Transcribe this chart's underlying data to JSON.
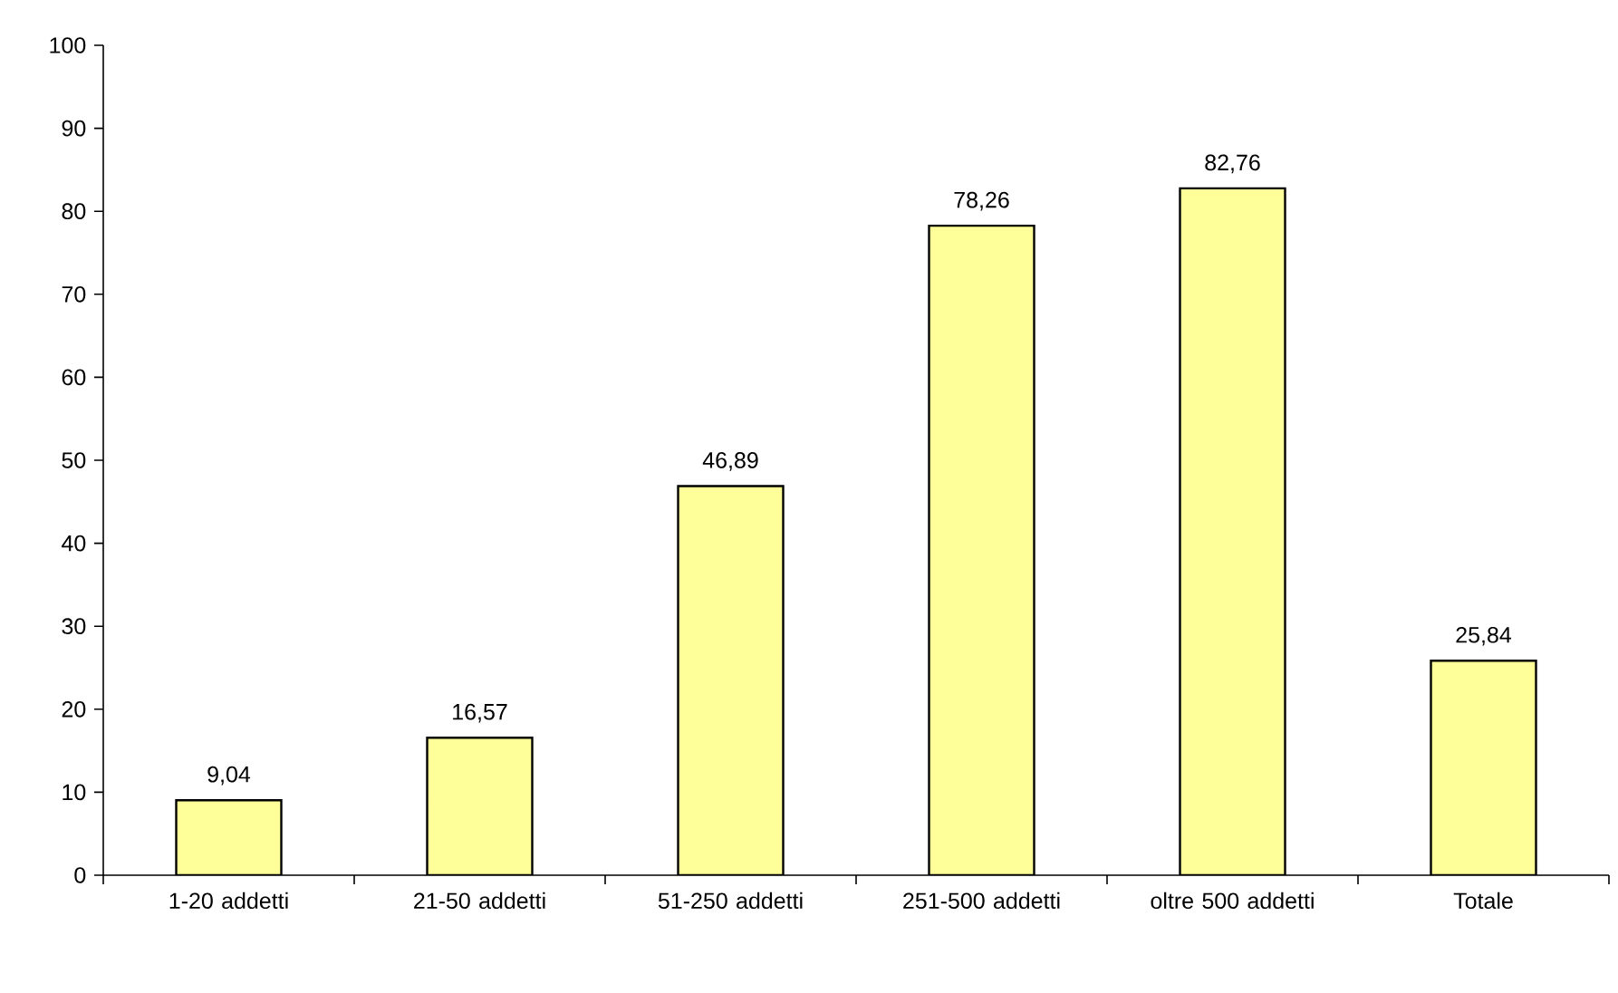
{
  "chart_data": {
    "type": "bar",
    "categories": [
      "1-20 addetti",
      "21-50 addetti",
      "51-250 addetti",
      "251-500 addetti",
      "oltre 500 addetti",
      "Totale"
    ],
    "values": [
      9.04,
      16.57,
      46.89,
      78.26,
      82.76,
      25.84
    ],
    "value_labels": [
      "9,04",
      "16,57",
      "46,89",
      "78,26",
      "82,76",
      "25,84"
    ],
    "color": "#ffff99",
    "ylim": [
      0,
      100
    ],
    "yticks": [
      0,
      10,
      20,
      30,
      40,
      50,
      60,
      70,
      80,
      90,
      100
    ],
    "grid": false
  }
}
